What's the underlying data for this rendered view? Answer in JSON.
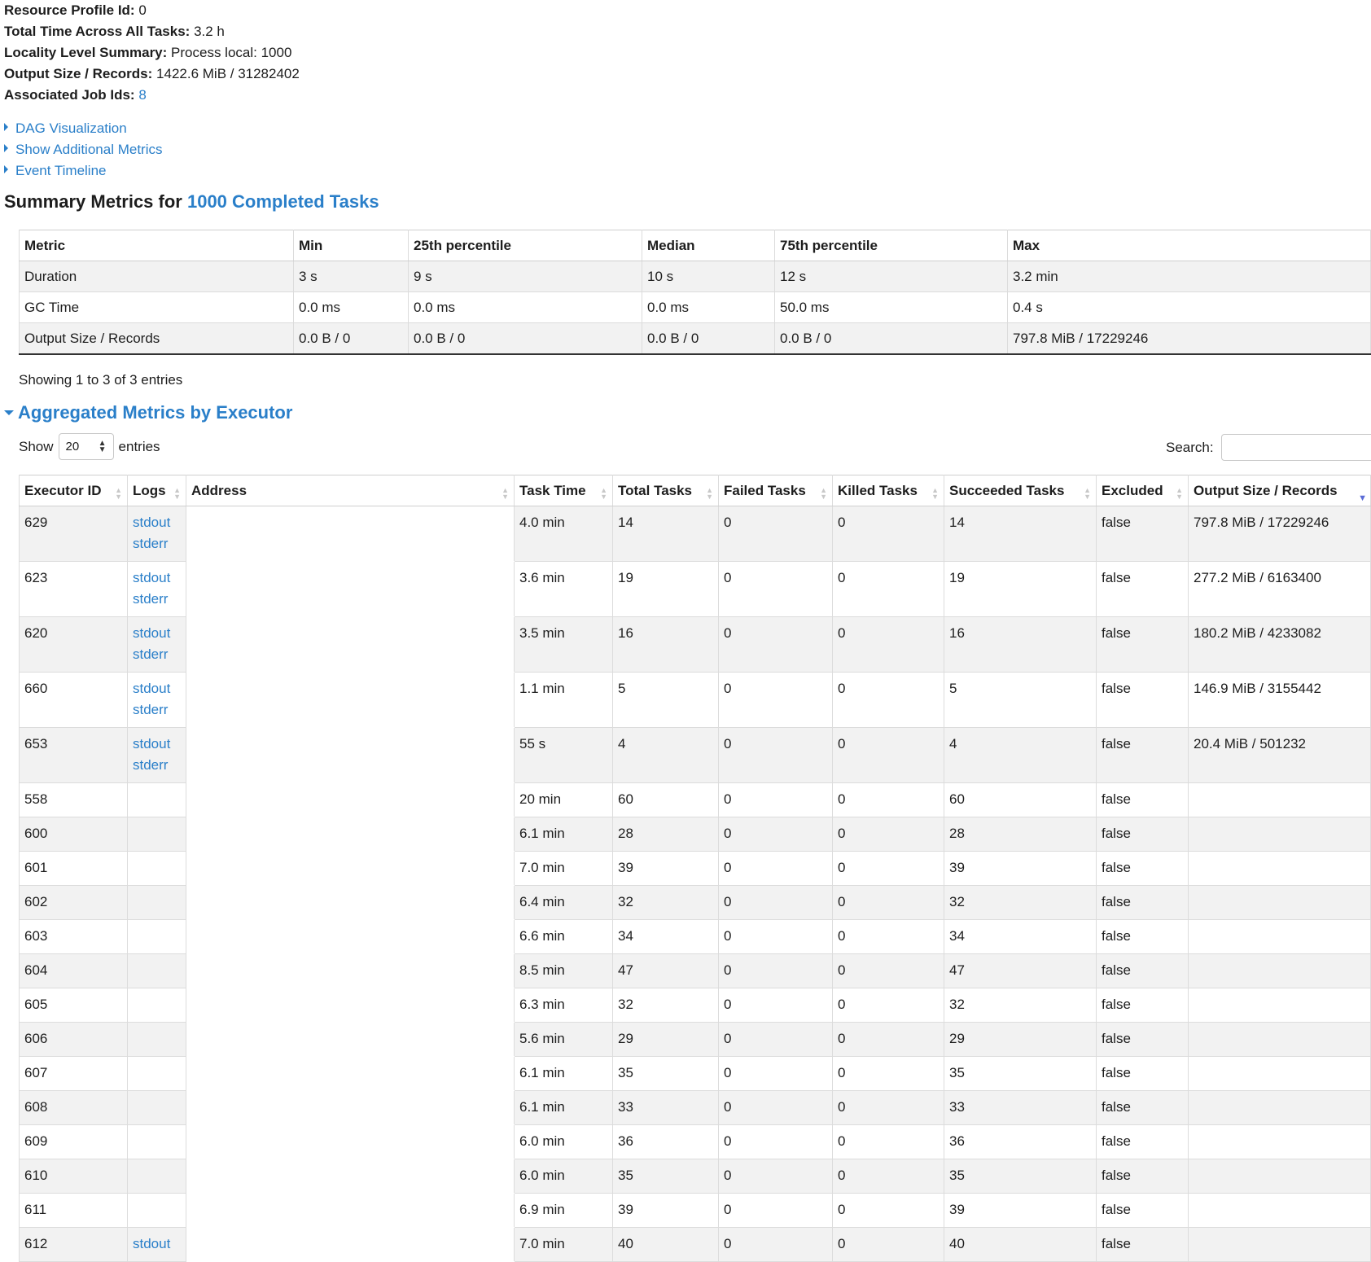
{
  "summary": {
    "items": [
      {
        "label": "Resource Profile Id:",
        "value": "0"
      },
      {
        "label": "Total Time Across All Tasks:",
        "value": "3.2 h"
      },
      {
        "label": "Locality Level Summary:",
        "value": "Process local: 1000"
      },
      {
        "label": "Output Size / Records:",
        "value": "1422.6 MiB / 31282402"
      },
      {
        "label": "Associated Job Ids:",
        "value": "8"
      }
    ]
  },
  "toggles": [
    {
      "label": "DAG Visualization",
      "icon": "caret-right-icon"
    },
    {
      "label": "Show Additional Metrics",
      "icon": "caret-right-icon"
    },
    {
      "label": "Event Timeline",
      "icon": "caret-right-icon"
    }
  ],
  "summary_metrics": {
    "heading_prefix": "Summary Metrics for ",
    "heading_link": "1000 Completed Tasks",
    "columns": [
      "Metric",
      "Min",
      "25th percentile",
      "Median",
      "75th percentile",
      "Max"
    ],
    "rows": [
      [
        "Duration",
        "3 s",
        "9 s",
        "10 s",
        "12 s",
        "3.2 min"
      ],
      [
        "GC Time",
        "0.0 ms",
        "0.0 ms",
        "0.0 ms",
        "50.0 ms",
        "0.4 s"
      ],
      [
        "Output Size / Records",
        "0.0 B / 0",
        "0.0 B / 0",
        "0.0 B / 0",
        "0.0 B / 0",
        "797.8 MiB / 17229246"
      ]
    ],
    "showing_text": "Showing 1 to 3 of 3 entries"
  },
  "executor_metrics": {
    "heading": "Aggregated Metrics by Executor",
    "heading_icon": "caret-down-icon",
    "show_label": "Show",
    "entries_label": "entries",
    "page_size": "20",
    "search_label": "Search:",
    "search_value": "",
    "columns": [
      "Executor ID",
      "Logs",
      "Address",
      "Task Time",
      "Total Tasks",
      "Failed Tasks",
      "Killed Tasks",
      "Succeeded Tasks",
      "Excluded",
      "Output Size / Records"
    ],
    "sort_column": "Output Size / Records",
    "rows": [
      {
        "id": "629",
        "logs": [
          "stdout",
          "stderr"
        ],
        "address": "",
        "task_time": "4.0 min",
        "total": "14",
        "failed": "0",
        "killed": "0",
        "succeeded": "14",
        "excluded": "false",
        "output": "797.8 MiB / 17229246"
      },
      {
        "id": "623",
        "logs": [
          "stdout",
          "stderr"
        ],
        "address": "",
        "task_time": "3.6 min",
        "total": "19",
        "failed": "0",
        "killed": "0",
        "succeeded": "19",
        "excluded": "false",
        "output": "277.2 MiB / 6163400"
      },
      {
        "id": "620",
        "logs": [
          "stdout",
          "stderr"
        ],
        "address": "",
        "task_time": "3.5 min",
        "total": "16",
        "failed": "0",
        "killed": "0",
        "succeeded": "16",
        "excluded": "false",
        "output": "180.2 MiB / 4233082"
      },
      {
        "id": "660",
        "logs": [
          "stdout",
          "stderr"
        ],
        "address": "",
        "task_time": "1.1 min",
        "total": "5",
        "failed": "0",
        "killed": "0",
        "succeeded": "5",
        "excluded": "false",
        "output": "146.9 MiB / 3155442"
      },
      {
        "id": "653",
        "logs": [
          "stdout",
          "stderr"
        ],
        "address": "",
        "task_time": "55 s",
        "total": "4",
        "failed": "0",
        "killed": "0",
        "succeeded": "4",
        "excluded": "false",
        "output": "20.4 MiB / 501232"
      },
      {
        "id": "558",
        "logs": [],
        "address": "",
        "task_time": "20 min",
        "total": "60",
        "failed": "0",
        "killed": "0",
        "succeeded": "60",
        "excluded": "false",
        "output": ""
      },
      {
        "id": "600",
        "logs": [],
        "address": "",
        "task_time": "6.1 min",
        "total": "28",
        "failed": "0",
        "killed": "0",
        "succeeded": "28",
        "excluded": "false",
        "output": ""
      },
      {
        "id": "601",
        "logs": [],
        "address": "",
        "task_time": "7.0 min",
        "total": "39",
        "failed": "0",
        "killed": "0",
        "succeeded": "39",
        "excluded": "false",
        "output": ""
      },
      {
        "id": "602",
        "logs": [],
        "address": "",
        "task_time": "6.4 min",
        "total": "32",
        "failed": "0",
        "killed": "0",
        "succeeded": "32",
        "excluded": "false",
        "output": ""
      },
      {
        "id": "603",
        "logs": [],
        "address": "",
        "task_time": "6.6 min",
        "total": "34",
        "failed": "0",
        "killed": "0",
        "succeeded": "34",
        "excluded": "false",
        "output": ""
      },
      {
        "id": "604",
        "logs": [],
        "address": "",
        "task_time": "8.5 min",
        "total": "47",
        "failed": "0",
        "killed": "0",
        "succeeded": "47",
        "excluded": "false",
        "output": ""
      },
      {
        "id": "605",
        "logs": [],
        "address": "",
        "task_time": "6.3 min",
        "total": "32",
        "failed": "0",
        "killed": "0",
        "succeeded": "32",
        "excluded": "false",
        "output": ""
      },
      {
        "id": "606",
        "logs": [],
        "address": "",
        "task_time": "5.6 min",
        "total": "29",
        "failed": "0",
        "killed": "0",
        "succeeded": "29",
        "excluded": "false",
        "output": ""
      },
      {
        "id": "607",
        "logs": [],
        "address": "",
        "task_time": "6.1 min",
        "total": "35",
        "failed": "0",
        "killed": "0",
        "succeeded": "35",
        "excluded": "false",
        "output": ""
      },
      {
        "id": "608",
        "logs": [],
        "address": "",
        "task_time": "6.1 min",
        "total": "33",
        "failed": "0",
        "killed": "0",
        "succeeded": "33",
        "excluded": "false",
        "output": ""
      },
      {
        "id": "609",
        "logs": [],
        "address": "",
        "task_time": "6.0 min",
        "total": "36",
        "failed": "0",
        "killed": "0",
        "succeeded": "36",
        "excluded": "false",
        "output": ""
      },
      {
        "id": "610",
        "logs": [],
        "address": "",
        "task_time": "6.0 min",
        "total": "35",
        "failed": "0",
        "killed": "0",
        "succeeded": "35",
        "excluded": "false",
        "output": ""
      },
      {
        "id": "611",
        "logs": [],
        "address": "",
        "task_time": "6.9 min",
        "total": "39",
        "failed": "0",
        "killed": "0",
        "succeeded": "39",
        "excluded": "false",
        "output": ""
      },
      {
        "id": "612",
        "logs": [
          "stdout"
        ],
        "address": "",
        "task_time": "7.0 min",
        "total": "40",
        "failed": "0",
        "killed": "0",
        "succeeded": "40",
        "excluded": "false",
        "output": ""
      }
    ]
  },
  "colors": {
    "link": "#2a7fc9",
    "stripe": "#f2f2f2",
    "sort_active": "#5a6bd6"
  }
}
